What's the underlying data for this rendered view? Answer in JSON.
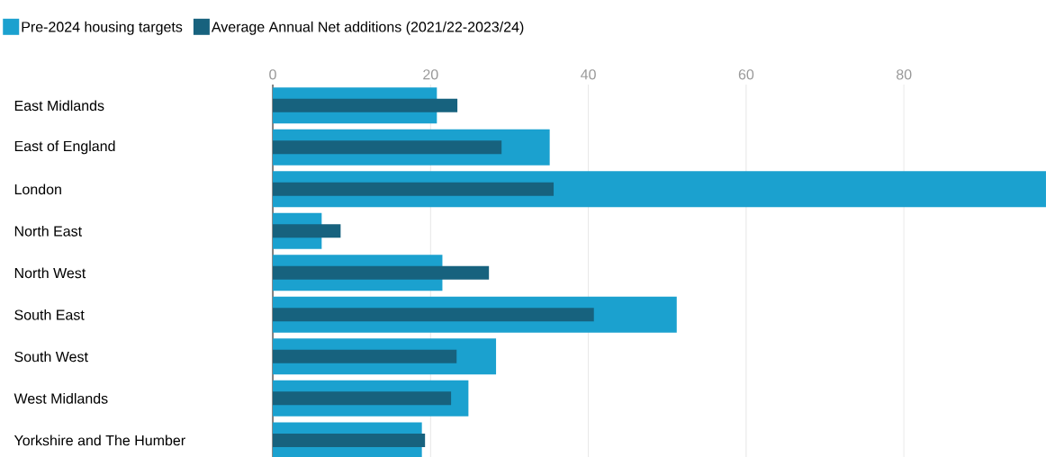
{
  "chart_data": {
    "type": "bar",
    "orientation": "horizontal",
    "categories": [
      "East Midlands",
      "East of England",
      "London",
      "North East",
      "North West",
      "South East",
      "South West",
      "West Midlands",
      "Yorkshire and The Humber"
    ],
    "series": [
      {
        "name": "Pre-2024 housing targets",
        "color": "#1ba1cf",
        "values": [
          20.8,
          35.1,
          98,
          6.2,
          21.5,
          51.2,
          28.3,
          24.8,
          18.9
        ]
      },
      {
        "name": "Average Annual Net additions (2021/22-2023/24)",
        "color": "#17627e",
        "values": [
          23.4,
          29.0,
          35.6,
          8.6,
          27.4,
          40.7,
          23.3,
          22.6,
          19.3
        ]
      }
    ],
    "xlim": [
      0,
      98
    ],
    "xticks": [
      0,
      20,
      40,
      60,
      80
    ],
    "grid": "x",
    "legend": "top left"
  }
}
